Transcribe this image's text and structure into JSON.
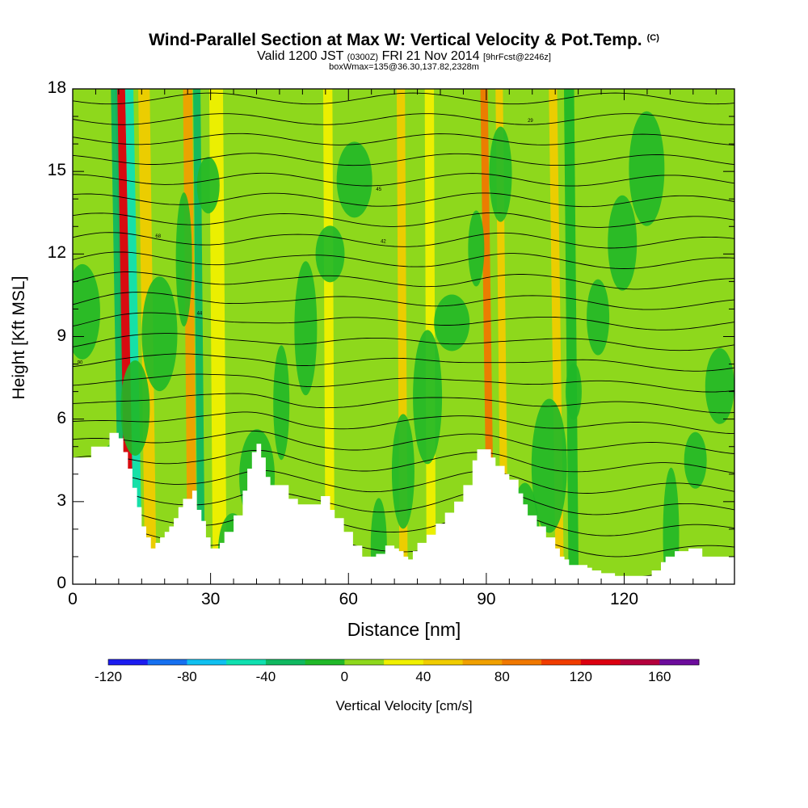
{
  "title": {
    "main": "Wind-Parallel Section at Max W: Vertical Velocity & Pot.Temp.",
    "copyright": "(C)",
    "valid_prefix": "Valid 1200 JST",
    "valid_utc": "(0300Z)",
    "valid_date": "FRI 21 Nov 2014",
    "forecast": "[9hrFcst@2246z]",
    "box_info": "boxWmax=135@36.30,137.82,2328m"
  },
  "chart_data": {
    "type": "heatmap",
    "title": "Wind-Parallel Section at Max W: Vertical Velocity & Pot.Temp.",
    "xlabel": "Distance [nm]",
    "ylabel": "Height [Kft MSL]",
    "xlim": [
      0,
      144
    ],
    "ylim": [
      0,
      18
    ],
    "x_ticks": [
      "0",
      "30",
      "60",
      "90",
      "120"
    ],
    "x_tick_values": [
      0,
      30,
      60,
      90,
      120
    ],
    "y_ticks": [
      "0",
      "3",
      "6",
      "9",
      "12",
      "15",
      "18"
    ],
    "y_tick_values": [
      0,
      3,
      6,
      9,
      12,
      15,
      18
    ],
    "x_minor_step": 5,
    "y_minor_step": 1,
    "terrain_kft": [
      [
        0,
        4.6
      ],
      [
        3,
        4.6
      ],
      [
        4,
        5.0
      ],
      [
        6,
        5.0
      ],
      [
        8,
        5.5
      ],
      [
        10,
        5.3
      ],
      [
        11,
        4.8
      ],
      [
        12,
        4.2
      ],
      [
        13,
        3.5
      ],
      [
        14,
        2.8
      ],
      [
        15,
        2.1
      ],
      [
        16,
        1.7
      ],
      [
        17,
        1.3
      ],
      [
        18,
        1.5
      ],
      [
        19,
        1.7
      ],
      [
        20,
        1.9
      ],
      [
        21,
        2.1
      ],
      [
        22,
        2.4
      ],
      [
        23,
        2.8
      ],
      [
        24,
        3.1
      ],
      [
        26,
        3.4
      ],
      [
        27,
        2.7
      ],
      [
        28,
        2.3
      ],
      [
        29,
        1.7
      ],
      [
        30,
        1.3
      ],
      [
        32,
        1.5
      ],
      [
        33,
        1.9
      ],
      [
        35,
        2.5
      ],
      [
        37,
        3.4
      ],
      [
        38,
        4.2
      ],
      [
        39,
        4.8
      ],
      [
        40,
        5.1
      ],
      [
        41,
        4.6
      ],
      [
        42,
        3.9
      ],
      [
        43,
        3.6
      ],
      [
        45,
        3.6
      ],
      [
        47,
        3.1
      ],
      [
        49,
        2.9
      ],
      [
        52,
        2.9
      ],
      [
        54,
        3.2
      ],
      [
        56,
        2.7
      ],
      [
        57,
        2.4
      ],
      [
        59,
        1.9
      ],
      [
        61,
        1.4
      ],
      [
        63,
        1.0
      ],
      [
        66,
        1.1
      ],
      [
        68,
        1.4
      ],
      [
        70,
        1.3
      ],
      [
        71,
        1.2
      ],
      [
        72,
        1.0
      ],
      [
        73,
        0.9
      ],
      [
        74,
        1.2
      ],
      [
        75,
        1.5
      ],
      [
        77,
        1.8
      ],
      [
        79,
        2.2
      ],
      [
        81,
        2.6
      ],
      [
        83,
        3.0
      ],
      [
        85,
        3.6
      ],
      [
        87,
        4.5
      ],
      [
        88,
        4.9
      ],
      [
        90,
        4.9
      ],
      [
        91,
        4.6
      ],
      [
        92,
        4.3
      ],
      [
        94,
        4.0
      ],
      [
        95,
        3.8
      ],
      [
        97,
        3.3
      ],
      [
        98,
        2.9
      ],
      [
        99,
        2.5
      ],
      [
        101,
        2.1
      ],
      [
        103,
        1.7
      ],
      [
        105,
        1.3
      ],
      [
        106,
        1.0
      ],
      [
        107,
        0.9
      ],
      [
        108,
        0.7
      ],
      [
        110,
        0.7
      ],
      [
        112,
        0.6
      ],
      [
        113,
        0.5
      ],
      [
        115,
        0.4
      ],
      [
        118,
        0.3
      ],
      [
        121,
        0.3
      ],
      [
        124,
        0.3
      ],
      [
        126,
        0.5
      ],
      [
        128,
        0.8
      ],
      [
        129,
        1.0
      ],
      [
        131,
        1.2
      ],
      [
        134,
        1.3
      ],
      [
        137,
        1.0
      ],
      [
        144,
        1.0
      ]
    ],
    "w_features": [
      {
        "x": 12.5,
        "width": 2.2,
        "value": 120,
        "lean": -2.2
      },
      {
        "x": 14.3,
        "width": 1.8,
        "value": -60,
        "lean": -2.0
      },
      {
        "x": 10.8,
        "width": 1.4,
        "value": -40,
        "lean": -1.8
      },
      {
        "x": 17.0,
        "width": 2.5,
        "value": 40,
        "lean": -1.5
      },
      {
        "x": 26.0,
        "width": 2.0,
        "value": 60,
        "lean": -1.0
      },
      {
        "x": 28.0,
        "width": 1.6,
        "value": -40,
        "lean": -1.0
      },
      {
        "x": 32.0,
        "width": 3.0,
        "value": 30,
        "lean": -0.8
      },
      {
        "x": 56.0,
        "width": 2.0,
        "value": 30,
        "lean": -0.5
      },
      {
        "x": 72.0,
        "width": 1.8,
        "value": 40,
        "lean": -0.6
      },
      {
        "x": 78.0,
        "width": 2.0,
        "value": 30,
        "lean": -0.4
      },
      {
        "x": 91.0,
        "width": 1.6,
        "value": 80,
        "lean": -1.5
      },
      {
        "x": 94.0,
        "width": 1.6,
        "value": 40,
        "lean": -1.2
      },
      {
        "x": 106.0,
        "width": 1.8,
        "value": 50,
        "lean": -1.5
      },
      {
        "x": 109.0,
        "width": 2.2,
        "value": -10,
        "lean": -1.0
      }
    ],
    "theta_labels": [
      "90",
      "68",
      "44",
      "45",
      "42",
      "29"
    ],
    "colorbar": {
      "label": "Vertical Velocity [cm/s]",
      "ticks": [
        "-120",
        "-80",
        "-40",
        "0",
        "40",
        "80",
        "120",
        "160"
      ],
      "tick_values": [
        -120,
        -80,
        -40,
        0,
        40,
        80,
        120,
        160
      ],
      "boundaries": [
        -120,
        -100,
        -80,
        -60,
        -40,
        -20,
        0,
        20,
        40,
        60,
        80,
        100,
        120,
        140,
        160,
        180
      ],
      "colors": [
        "#1c1cf0",
        "#1670f0",
        "#10c0f0",
        "#10e0b0",
        "#10b860",
        "#20b828",
        "#8ed81c",
        "#f0f000",
        "#f0cc00",
        "#f0a000",
        "#f07800",
        "#f03c00",
        "#dc0010",
        "#b4003c",
        "#6c0c9c"
      ]
    },
    "colors": {
      "background": "#8ed81c",
      "downdraft": "#20b828",
      "terrain": "#ffffff",
      "contour": "#000000"
    }
  }
}
